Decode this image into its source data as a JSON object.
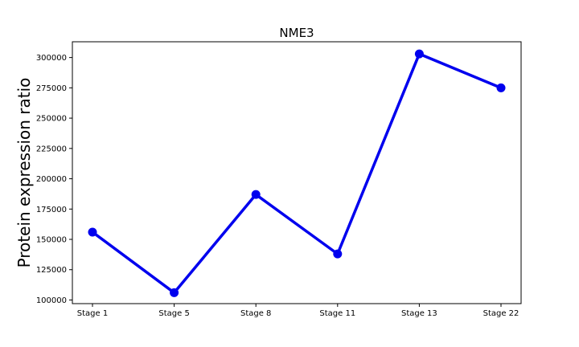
{
  "chart_data": {
    "type": "line",
    "title": "NME3",
    "xlabel": "",
    "ylabel": "Protein expression ratio",
    "categories": [
      "Stage 1",
      "Stage 5",
      "Stage 8",
      "Stage 11",
      "Stage 13",
      "Stage 22"
    ],
    "series": [
      {
        "values": [
          156000,
          106000,
          187000,
          138000,
          303000,
          275000
        ],
        "color": "#0000ee"
      }
    ],
    "yticks": [
      100000,
      125000,
      150000,
      175000,
      200000,
      225000,
      250000,
      275000,
      300000
    ],
    "ytick_labels": [
      "100000",
      "125000",
      "150000",
      "175000",
      "200000",
      "225000",
      "250000",
      "275000",
      "300000"
    ],
    "ylim": [
      97000,
      313000
    ],
    "grid": false,
    "legend": "none"
  }
}
